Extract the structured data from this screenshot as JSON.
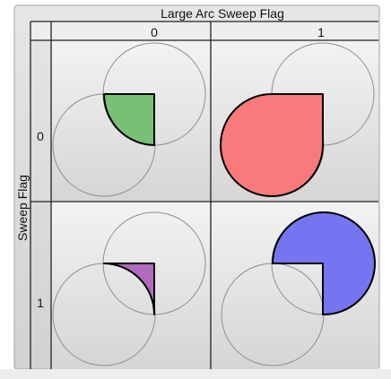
{
  "header": {
    "top_title": "Large Arc Sweep Flag",
    "side_title": "Sweep Flag"
  },
  "columns": [
    {
      "label": "0"
    },
    {
      "label": "1"
    }
  ],
  "rows": [
    {
      "label": "0"
    },
    {
      "label": "1"
    }
  ],
  "colors": {
    "frame_bg": "#d9d9d9",
    "cell_light": "#f2f2f2",
    "cell_dark": "#d6d6d6",
    "grid_line": "#222222",
    "circle_stroke": "#8f8f8f",
    "arc_stroke": "#000000",
    "bottom_strip": "#eeeeee",
    "green": "#78bf78",
    "red": "#f87a7a",
    "purple": "#b06bbd",
    "blue": "#7575f2"
  },
  "cells": [
    {
      "row": 0,
      "col": 0,
      "fill": "green",
      "large_arc": 0,
      "sweep": 0
    },
    {
      "row": 0,
      "col": 1,
      "fill": "red",
      "large_arc": 1,
      "sweep": 0
    },
    {
      "row": 1,
      "col": 0,
      "fill": "purple",
      "large_arc": 0,
      "sweep": 1
    },
    {
      "row": 1,
      "col": 1,
      "fill": "blue",
      "large_arc": 1,
      "sweep": 1
    }
  ]
}
